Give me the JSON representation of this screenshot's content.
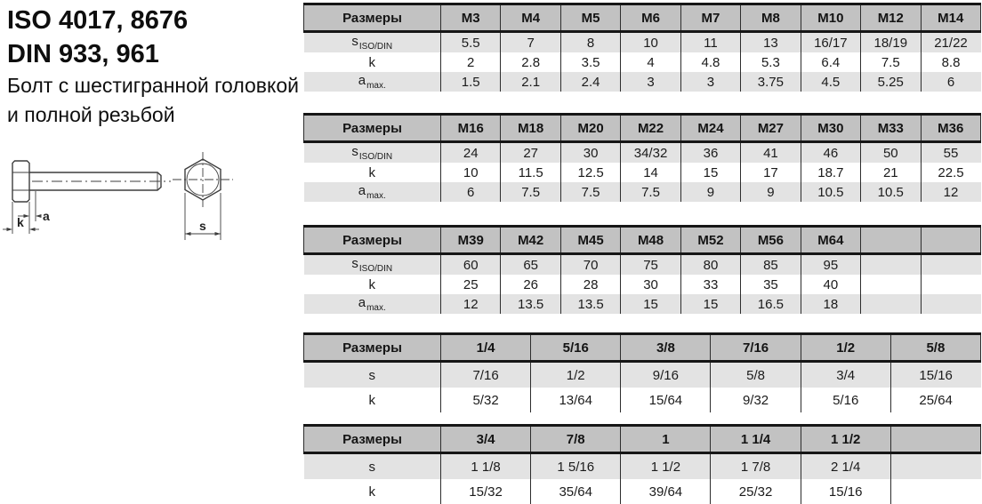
{
  "header": {
    "standard_iso": "ISO 4017, 8676",
    "standard_din": "DIN 933, 961",
    "description_line1": "Болт с шестигранной головкой",
    "description_line2": "и полной резьбой"
  },
  "drawing": {
    "dim_a_label": "a",
    "dim_k_label": "k",
    "dim_s_label": "s"
  },
  "colors": {
    "table_header_bg": "#c2c2c2",
    "table_stripe_bg": "#e3e3e3",
    "table_border": "#161616"
  },
  "tables": [
    {
      "corner_label": "Размеры",
      "unit_system": "metric",
      "columns": [
        "M3",
        "M4",
        "M5",
        "M6",
        "M7",
        "M8",
        "M10",
        "M12",
        "M14"
      ],
      "rows": [
        {
          "label": "s",
          "label_sub": "ISO/DIN",
          "striped": true,
          "values": [
            "5.5",
            "7",
            "8",
            "10",
            "11",
            "13",
            "16/17",
            "18/19",
            "21/22"
          ]
        },
        {
          "label": "k",
          "label_sub": "",
          "striped": false,
          "values": [
            "2",
            "2.8",
            "3.5",
            "4",
            "4.8",
            "5.3",
            "6.4",
            "7.5",
            "8.8"
          ]
        },
        {
          "label": "a",
          "label_sub": "max.",
          "striped": true,
          "values": [
            "1.5",
            "2.1",
            "2.4",
            "3",
            "3",
            "3.75",
            "4.5",
            "5.25",
            "6"
          ]
        }
      ]
    },
    {
      "corner_label": "Размеры",
      "unit_system": "metric",
      "columns": [
        "M16",
        "M18",
        "M20",
        "M22",
        "M24",
        "M27",
        "M30",
        "M33",
        "M36"
      ],
      "rows": [
        {
          "label": "s",
          "label_sub": "ISO/DIN",
          "striped": true,
          "values": [
            "24",
            "27",
            "30",
            "34/32",
            "36",
            "41",
            "46",
            "50",
            "55"
          ]
        },
        {
          "label": "k",
          "label_sub": "",
          "striped": false,
          "values": [
            "10",
            "11.5",
            "12.5",
            "14",
            "15",
            "17",
            "18.7",
            "21",
            "22.5"
          ]
        },
        {
          "label": "a",
          "label_sub": "max.",
          "striped": true,
          "values": [
            "6",
            "7.5",
            "7.5",
            "7.5",
            "9",
            "9",
            "10.5",
            "10.5",
            "12"
          ]
        }
      ]
    },
    {
      "corner_label": "Размеры",
      "unit_system": "metric",
      "columns": [
        "M39",
        "M42",
        "M45",
        "M48",
        "M52",
        "M56",
        "M64",
        "",
        ""
      ],
      "rows": [
        {
          "label": "s",
          "label_sub": "ISO/DIN",
          "striped": true,
          "values": [
            "60",
            "65",
            "70",
            "75",
            "80",
            "85",
            "95",
            "",
            ""
          ]
        },
        {
          "label": "k",
          "label_sub": "",
          "striped": false,
          "values": [
            "25",
            "26",
            "28",
            "30",
            "33",
            "35",
            "40",
            "",
            ""
          ]
        },
        {
          "label": "a",
          "label_sub": "max.",
          "striped": true,
          "values": [
            "12",
            "13.5",
            "13.5",
            "15",
            "15",
            "16.5",
            "18",
            "",
            ""
          ]
        }
      ]
    },
    {
      "corner_label": "Размеры",
      "unit_system": "inch",
      "columns": [
        "1/4",
        "5/16",
        "3/8",
        "7/16",
        "1/2",
        "5/8"
      ],
      "rows": [
        {
          "label": "s",
          "label_sub": "",
          "striped": true,
          "values": [
            "7/16",
            "1/2",
            "9/16",
            "5/8",
            "3/4",
            "15/16"
          ]
        },
        {
          "label": "k",
          "label_sub": "",
          "striped": false,
          "values": [
            "5/32",
            "13/64",
            "15/64",
            "9/32",
            "5/16",
            "25/64"
          ]
        }
      ]
    },
    {
      "corner_label": "Размеры",
      "unit_system": "inch",
      "columns": [
        "3/4",
        "7/8",
        "1",
        "1 1/4",
        "1 1/2",
        ""
      ],
      "rows": [
        {
          "label": "s",
          "label_sub": "",
          "striped": true,
          "values": [
            "1 1/8",
            "1 5/16",
            "1 1/2",
            "1 7/8",
            "2 1/4",
            ""
          ]
        },
        {
          "label": "k",
          "label_sub": "",
          "striped": false,
          "values": [
            "15/32",
            "35/64",
            "39/64",
            "25/32",
            "15/16",
            ""
          ]
        }
      ]
    }
  ]
}
